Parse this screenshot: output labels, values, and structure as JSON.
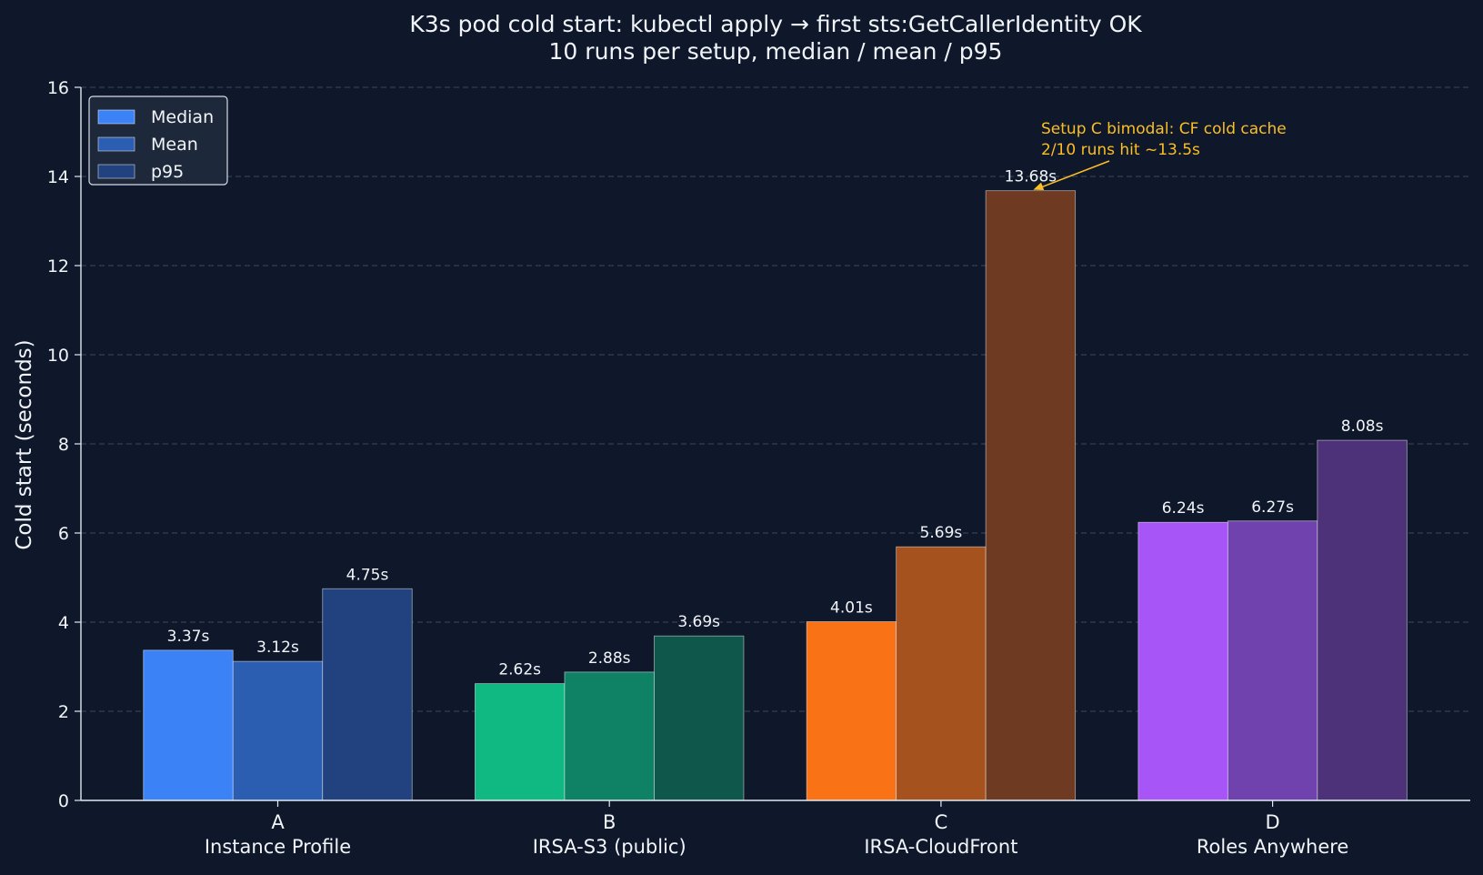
{
  "chart_data": {
    "type": "bar",
    "title": "K3s pod cold start: kubectl apply → first sts:GetCallerIdentity OK",
    "subtitle": "10 runs per setup, median / mean / p95",
    "xlabel": "",
    "ylabel": "Cold start (seconds)",
    "ylim": [
      0,
      16
    ],
    "yticks": [
      "0",
      "2",
      "4",
      "6",
      "8",
      "10",
      "12",
      "14",
      "16"
    ],
    "grid": "horizontal dashed",
    "legend_position": "top-left",
    "categories": [
      {
        "letter": "A",
        "name": "Instance Profile"
      },
      {
        "letter": "B",
        "name": "IRSA-S3 (public)"
      },
      {
        "letter": "C",
        "name": "IRSA-CloudFront"
      },
      {
        "letter": "D",
        "name": "Roles Anywhere"
      }
    ],
    "series": [
      {
        "name": "Median",
        "values": [
          3.37,
          2.62,
          4.01,
          6.24
        ],
        "labels": [
          "3.37s",
          "2.62s",
          "4.01s",
          "6.24s"
        ]
      },
      {
        "name": "Mean",
        "values": [
          3.12,
          2.88,
          5.69,
          6.27
        ],
        "labels": [
          "3.12s",
          "2.88s",
          "5.69s",
          "6.27s"
        ]
      },
      {
        "name": "p95",
        "values": [
          4.75,
          3.69,
          13.68,
          8.08
        ],
        "labels": [
          "4.75s",
          "3.69s",
          "13.68s",
          "8.08s"
        ]
      }
    ],
    "bar_colors": [
      [
        "#3b82f6",
        "#2b5db0",
        "#21427e"
      ],
      [
        "#10b981",
        "#0f8266",
        "#0f574b"
      ],
      [
        "#f97316",
        "#a5521e",
        "#6e3a22"
      ],
      [
        "#a855f7",
        "#7042ae",
        "#4d3279"
      ]
    ],
    "legend_colors": [
      "#3b82f6",
      "#2b5db0",
      "#21427e"
    ],
    "annotation": {
      "lines": [
        "Setup C bimodal: CF cold cache",
        "2/10 runs hit ~13.5s"
      ],
      "color": "#fbbf24",
      "target_category": 2,
      "target_series": 2
    }
  }
}
